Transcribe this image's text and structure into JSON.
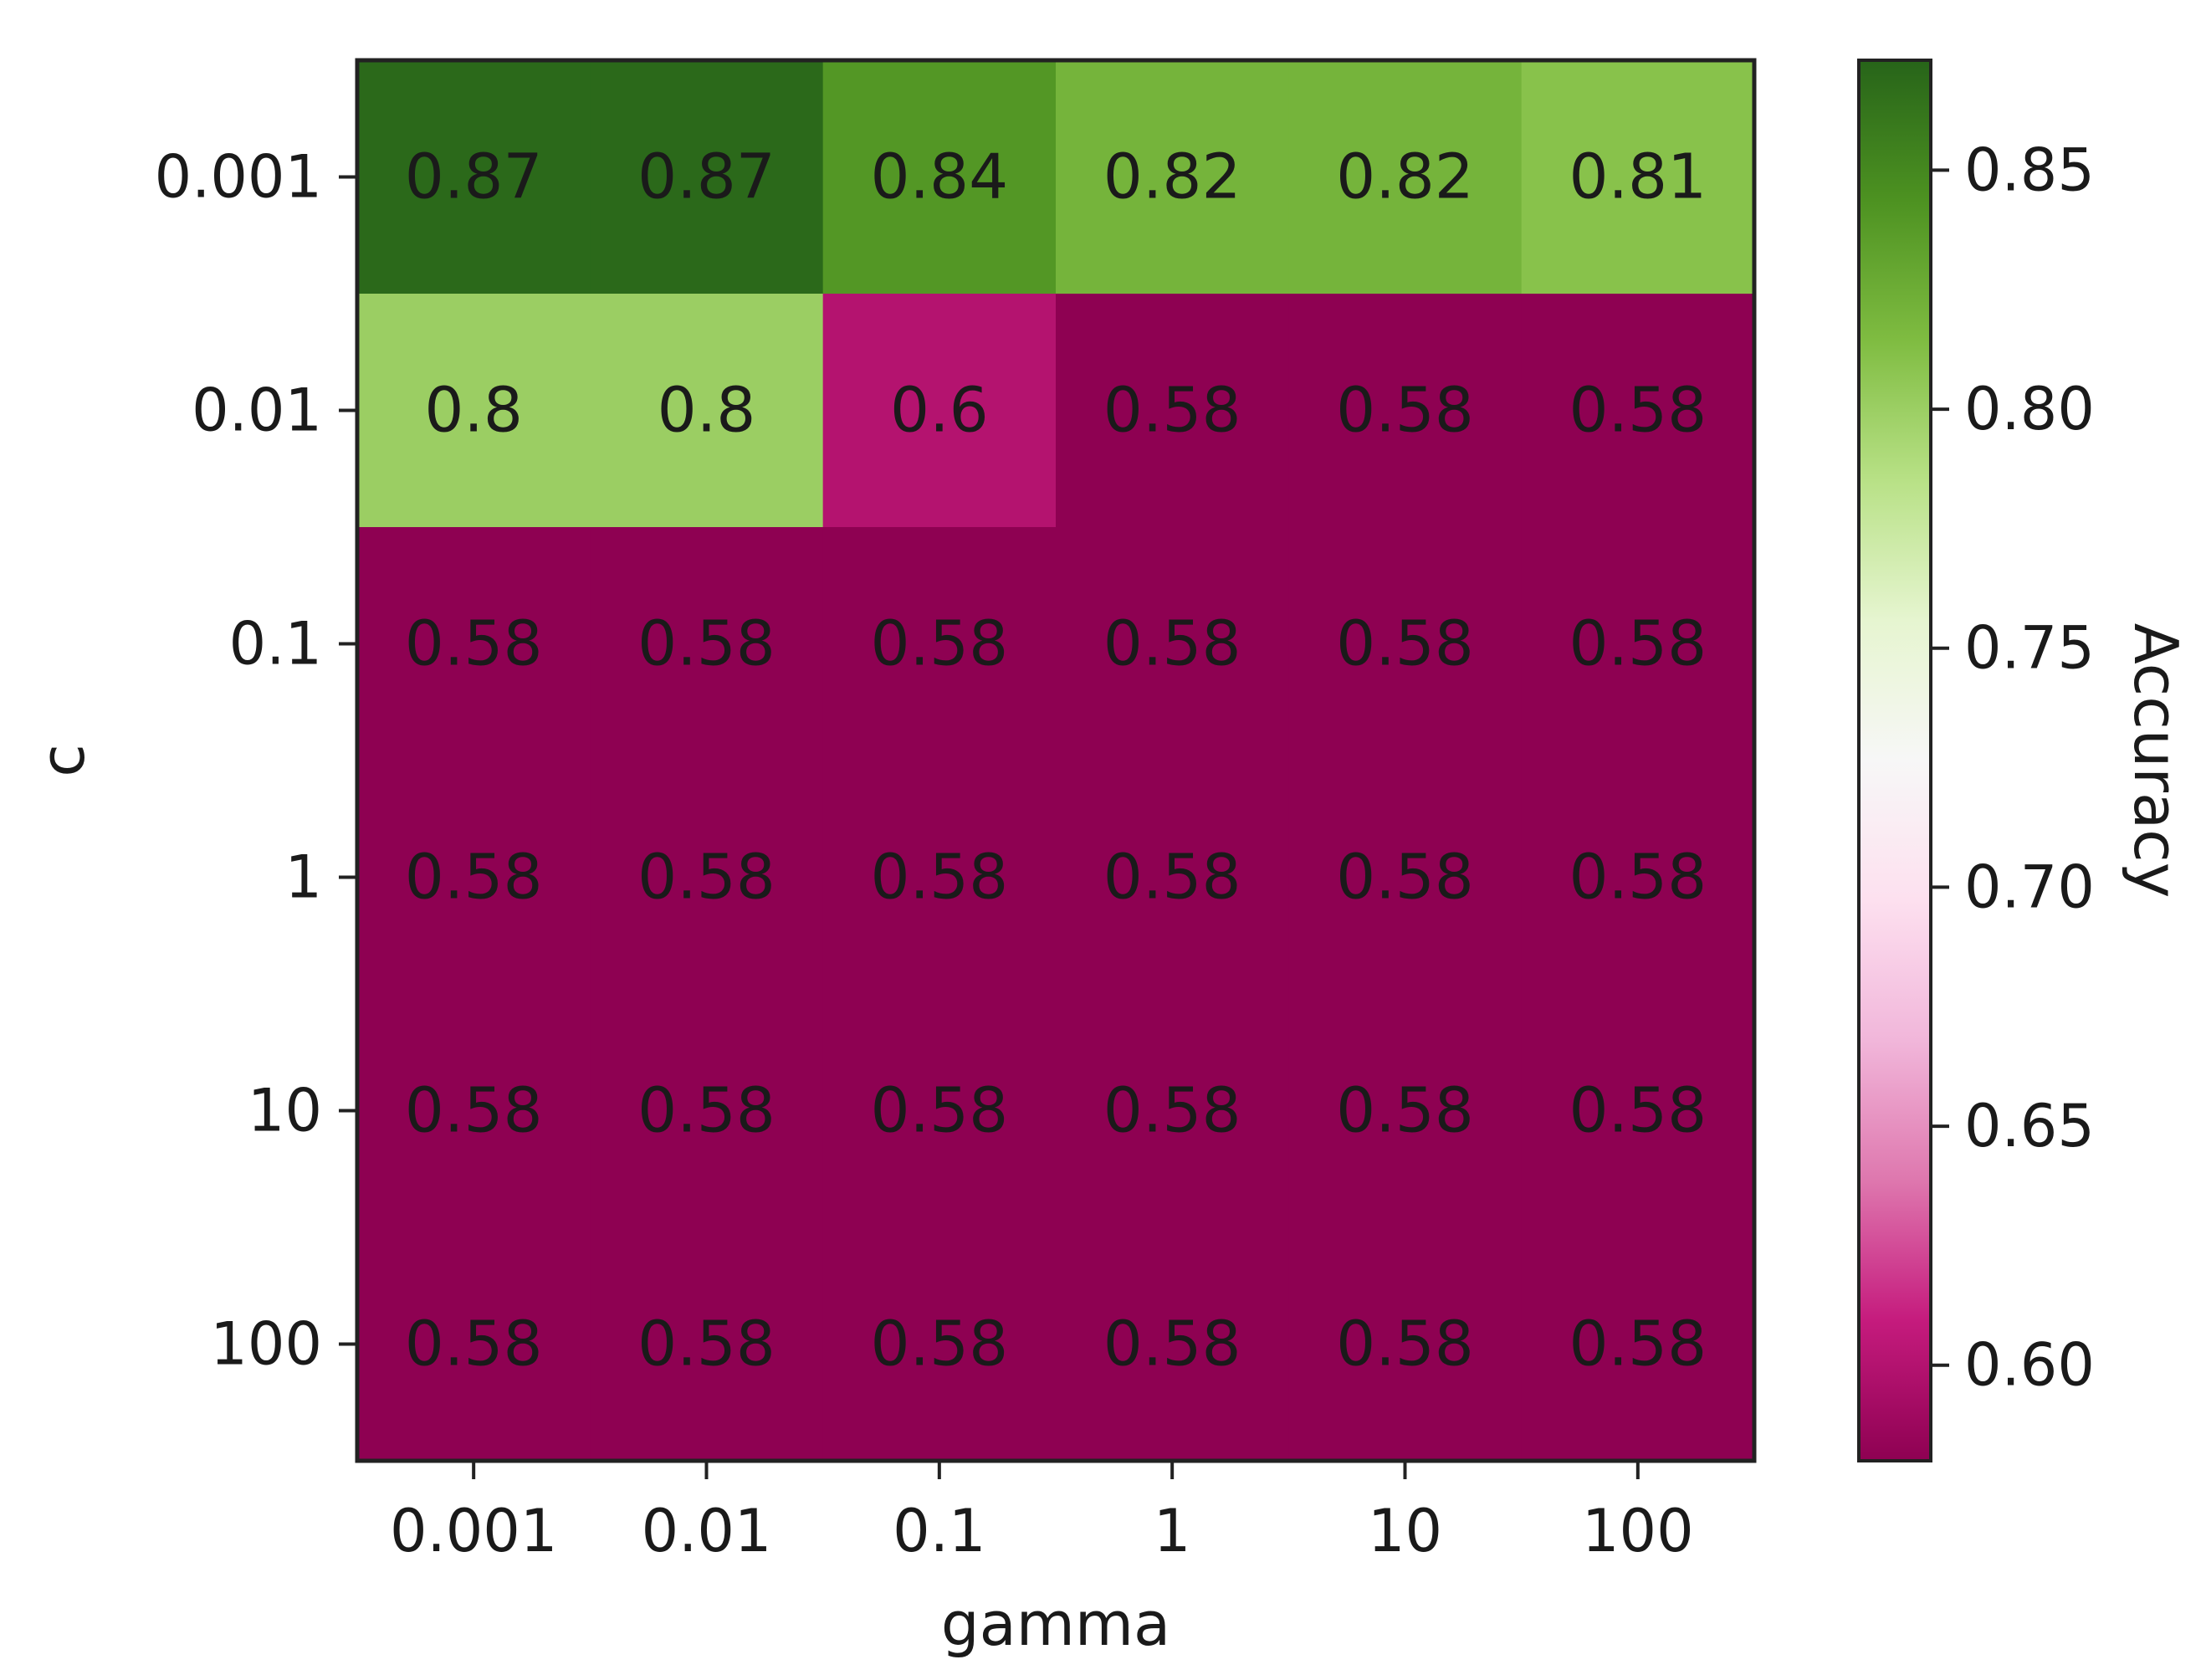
{
  "chart_data": {
    "type": "heatmap",
    "title": "",
    "xlabel": "gamma",
    "ylabel": "c",
    "x_categories": [
      "0.001",
      "0.01",
      "0.1",
      "1",
      "10",
      "100"
    ],
    "y_categories": [
      "0.001",
      "0.01",
      "0.1",
      "1",
      "10",
      "100"
    ],
    "values": [
      [
        0.87,
        0.87,
        0.84,
        0.82,
        0.82,
        0.81
      ],
      [
        0.8,
        0.8,
        0.6,
        0.58,
        0.58,
        0.58
      ],
      [
        0.58,
        0.58,
        0.58,
        0.58,
        0.58,
        0.58
      ],
      [
        0.58,
        0.58,
        0.58,
        0.58,
        0.58,
        0.58
      ],
      [
        0.58,
        0.58,
        0.58,
        0.58,
        0.58,
        0.58
      ],
      [
        0.58,
        0.58,
        0.58,
        0.58,
        0.58,
        0.58
      ]
    ],
    "value_labels": [
      [
        "0.87",
        "0.87",
        "0.84",
        "0.82",
        "0.82",
        "0.81"
      ],
      [
        "0.8",
        "0.8",
        "0.6",
        "0.58",
        "0.58",
        "0.58"
      ],
      [
        "0.58",
        "0.58",
        "0.58",
        "0.58",
        "0.58",
        "0.58"
      ],
      [
        "0.58",
        "0.58",
        "0.58",
        "0.58",
        "0.58",
        "0.58"
      ],
      [
        "0.58",
        "0.58",
        "0.58",
        "0.58",
        "0.58",
        "0.58"
      ],
      [
        "0.58",
        "0.58",
        "0.58",
        "0.58",
        "0.58",
        "0.58"
      ]
    ],
    "colorbar": {
      "label": "Accuracy",
      "colormap": "PiYG",
      "vmin": 0.58,
      "vmax": 0.873,
      "ticks": [
        0.6,
        0.65,
        0.7,
        0.75,
        0.8,
        0.85
      ],
      "tick_labels": [
        "0.60",
        "0.65",
        "0.70",
        "0.75",
        "0.80",
        "0.85"
      ]
    },
    "grid": false
  }
}
